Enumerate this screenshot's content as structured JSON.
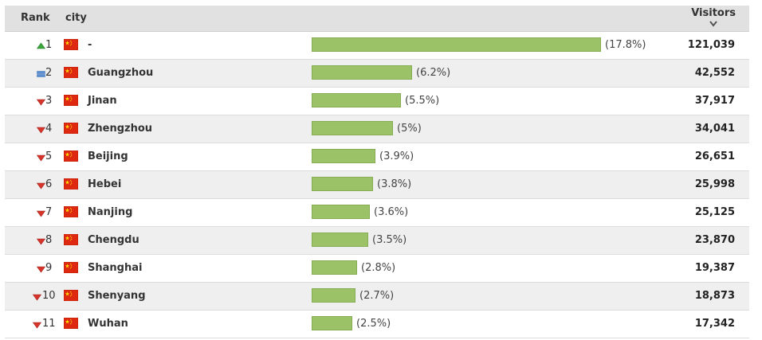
{
  "header": {
    "rank": "Rank",
    "city": "city",
    "visitors": "Visitors"
  },
  "colors": {
    "bar": "#9cc267",
    "up": "#3aa53a",
    "down": "#d9342b",
    "same": "#5b8fd6",
    "flag_red": "#de2910",
    "flag_yellow": "#ffde00"
  },
  "rows": [
    {
      "rank": "1",
      "trend": "up-arrow-icon",
      "city": "-",
      "share": 17.8,
      "pct": "(17.8%)",
      "visitors": "121,039"
    },
    {
      "rank": "2",
      "trend": "no-change-icon",
      "city": "Guangzhou",
      "share": 6.2,
      "pct": "(6.2%)",
      "visitors": "42,552"
    },
    {
      "rank": "3",
      "trend": "down-arrow-icon",
      "city": "Jinan",
      "share": 5.5,
      "pct": "(5.5%)",
      "visitors": "37,917"
    },
    {
      "rank": "4",
      "trend": "down-arrow-icon",
      "city": "Zhengzhou",
      "share": 5.0,
      "pct": "(5%)",
      "visitors": "34,041"
    },
    {
      "rank": "5",
      "trend": "down-arrow-icon",
      "city": "Beijing",
      "share": 3.9,
      "pct": "(3.9%)",
      "visitors": "26,651"
    },
    {
      "rank": "6",
      "trend": "down-arrow-icon",
      "city": "Hebei",
      "share": 3.8,
      "pct": "(3.8%)",
      "visitors": "25,998"
    },
    {
      "rank": "7",
      "trend": "down-arrow-icon",
      "city": "Nanjing",
      "share": 3.6,
      "pct": "(3.6%)",
      "visitors": "25,125"
    },
    {
      "rank": "8",
      "trend": "down-arrow-icon",
      "city": "Chengdu",
      "share": 3.5,
      "pct": "(3.5%)",
      "visitors": "23,870"
    },
    {
      "rank": "9",
      "trend": "down-arrow-icon",
      "city": "Shanghai",
      "share": 2.8,
      "pct": "(2.8%)",
      "visitors": "19,387"
    },
    {
      "rank": "10",
      "trend": "down-arrow-icon",
      "city": "Shenyang",
      "share": 2.7,
      "pct": "(2.7%)",
      "visitors": "18,873"
    },
    {
      "rank": "11",
      "trend": "down-arrow-icon",
      "city": "Wuhan",
      "share": 2.5,
      "pct": "(2.5%)",
      "visitors": "17,342"
    }
  ]
}
